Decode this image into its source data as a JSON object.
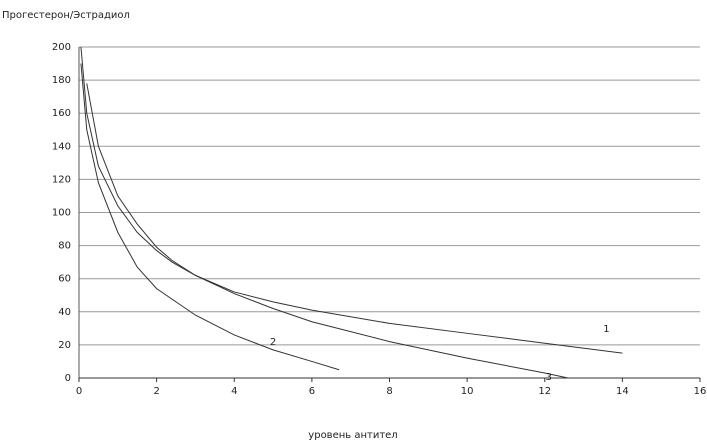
{
  "chart_data": {
    "type": "line",
    "y_label": "Прогестерон/Эстрадиол",
    "x_label": "уровень антител",
    "xlim": [
      0,
      16
    ],
    "xticks": [
      0,
      2,
      4,
      6,
      8,
      10,
      12,
      14,
      16
    ],
    "ylim": [
      0,
      200
    ],
    "yticks": [
      0,
      20,
      40,
      60,
      80,
      100,
      120,
      140,
      160,
      180,
      200
    ],
    "grid": true,
    "series": [
      {
        "name": "1",
        "color": "#333333",
        "x": [
          0.2,
          0.5,
          1,
          1.5,
          2,
          2.4,
          3,
          4,
          5,
          6,
          8,
          10,
          12,
          14
        ],
        "values": [
          178,
          140,
          110,
          93,
          79,
          71,
          62,
          52,
          46,
          41,
          33,
          27,
          21,
          15
        ]
      },
      {
        "name": "2",
        "color": "#333333",
        "x": [
          0.05,
          0.2,
          0.5,
          1,
          1.5,
          2,
          3,
          4,
          5,
          6,
          6.7
        ],
        "values": [
          190,
          150,
          118,
          88,
          67,
          54,
          38,
          26,
          17,
          10,
          5
        ]
      },
      {
        "name": "3",
        "color": "#333333",
        "x": [
          0.05,
          0.2,
          0.5,
          1,
          1.5,
          2,
          2.4,
          3,
          4,
          5,
          6,
          8,
          10,
          12,
          12.6
        ],
        "values": [
          200,
          160,
          128,
          104,
          88,
          77,
          70,
          62,
          51,
          42,
          34,
          22,
          12,
          3,
          0
        ]
      }
    ]
  }
}
